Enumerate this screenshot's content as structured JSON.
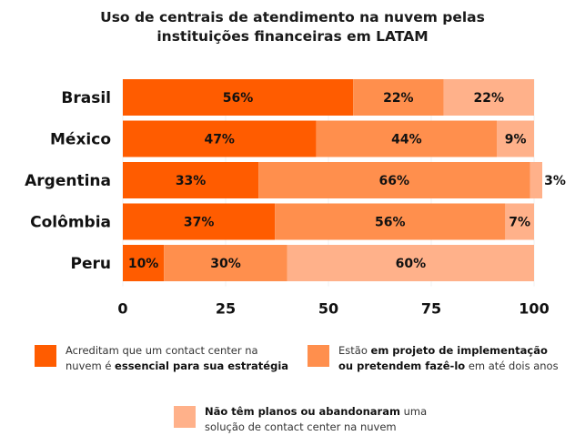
{
  "chart_data": {
    "type": "bar",
    "orientation": "horizontal",
    "stacked": true,
    "title": "Uso de centrais de atendimento na nuvem pelas instituições financeiras em LATAM",
    "title_lines": [
      "Uso de centrais de atendimento na nuvem pelas",
      "instituições financeiras em LATAM"
    ],
    "categories": [
      "Brasil",
      "México",
      "Argentina",
      "Colômbia",
      "Peru"
    ],
    "series": [
      {
        "name": "Acreditam que um contact center na nuvem é essencial para sua estratégia",
        "color": "#ff5c00",
        "values": [
          56,
          47,
          33,
          37,
          10
        ],
        "labels": [
          "56%",
          "47%",
          "33%",
          "37%",
          "10%"
        ]
      },
      {
        "name": "Estão em projeto de implementação ou pretendem fazê-lo em até dois anos",
        "color": "#ff8f4d",
        "values": [
          22,
          44,
          66,
          56,
          30
        ],
        "labels": [
          "22%",
          "44%",
          "66%",
          "56%",
          "30%"
        ]
      },
      {
        "name": "Não têm planos ou abandonaram uma solução de contact center na nuvem",
        "color": "#ffb18a",
        "values": [
          22,
          9,
          3,
          7,
          60
        ],
        "labels": [
          "22%",
          "9%",
          "3%",
          "7%",
          "60%"
        ]
      }
    ],
    "xlabel": "",
    "ylabel": "",
    "xlim": [
      0,
      100
    ],
    "xticks": [
      0,
      25,
      50,
      75,
      100
    ],
    "xtick_labels": [
      "0",
      "25",
      "50",
      "75",
      "100"
    ],
    "grid": true,
    "legend_position": "bottom"
  },
  "legend": [
    {
      "color": "#ff5c00",
      "line1": [
        {
          "text": "Acreditam que um contact center na",
          "bold": false
        }
      ],
      "line2": [
        {
          "text": "nuvem é ",
          "bold": false
        },
        {
          "text": "essencial para sua estratégia",
          "bold": true
        }
      ]
    },
    {
      "color": "#ff8f4d",
      "line1": [
        {
          "text": "Estão ",
          "bold": false
        },
        {
          "text": "em projeto de implementação",
          "bold": true
        }
      ],
      "line2": [
        {
          "text": "ou pretendem fazê-lo",
          "bold": true
        },
        {
          "text": " em até dois anos",
          "bold": false
        }
      ]
    },
    {
      "color": "#ffb18a",
      "line1": [
        {
          "text": "Não têm planos ou abandonaram",
          "bold": true
        },
        {
          "text": " uma",
          "bold": false
        }
      ],
      "line2": [
        {
          "text": "solução de contact center na nuvem",
          "bold": false
        }
      ]
    }
  ]
}
